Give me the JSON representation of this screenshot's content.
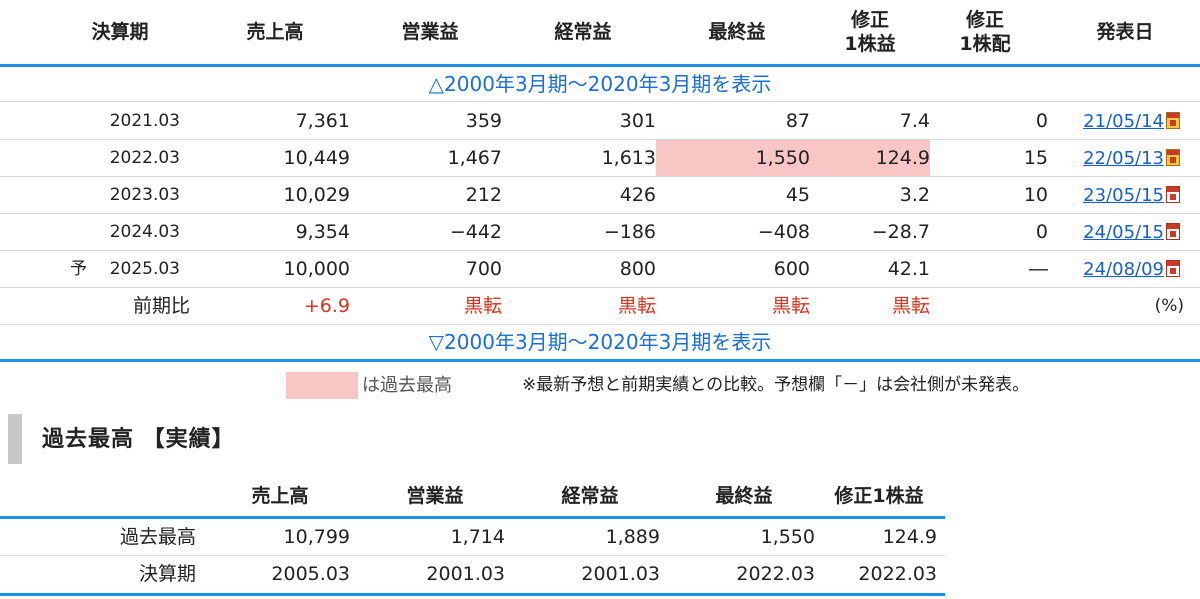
{
  "earnings_table": {
    "headers": {
      "period": "決算期",
      "sales": "売上高",
      "operating": "営業益",
      "ordinary": "経常益",
      "net": "最終益",
      "eps_l1": "修正",
      "eps_l2": "1株益",
      "div_l1": "修正",
      "div_l2": "1株配",
      "date": "発表日"
    },
    "toggle_top": "△2000年3月期～2020年3月期を表示",
    "toggle_bottom": "▽2000年3月期～2020年3月期を表示",
    "rows": [
      {
        "prefix": "",
        "period": "2021.03",
        "sales": "7,361",
        "operating": "359",
        "ordinary": "301",
        "net": "87",
        "eps": "7.4",
        "div": "0",
        "date": "21/05/14",
        "icon": "tdnet-yellow-doc-icon"
      },
      {
        "prefix": "",
        "period": "2022.03",
        "sales": "10,449",
        "operating": "1,467",
        "ordinary": "1,613",
        "net": "1,550",
        "eps": "124.9",
        "div": "15",
        "date": "22/05/13",
        "icon": "tdnet-yellow-doc-icon"
      },
      {
        "prefix": "",
        "period": "2023.03",
        "sales": "10,029",
        "operating": "212",
        "ordinary": "426",
        "net": "45",
        "eps": "3.2",
        "div": "10",
        "date": "23/05/15",
        "icon": "pdf-doc-icon"
      },
      {
        "prefix": "",
        "period": "2024.03",
        "sales": "9,354",
        "operating": "−442",
        "ordinary": "−186",
        "net": "−408",
        "eps": "−28.7",
        "div": "0",
        "date": "24/05/15",
        "icon": "pdf-doc-icon"
      },
      {
        "prefix": "予",
        "period": "2025.03",
        "sales": "10,000",
        "operating": "700",
        "ordinary": "800",
        "net": "600",
        "eps": "42.1",
        "div": "―",
        "date": "24/08/09",
        "icon": "pdf-doc-icon"
      }
    ],
    "comparison": {
      "label": "前期比",
      "sales": "+6.9",
      "operating": "黒転",
      "ordinary": "黒転",
      "net": "黒転",
      "eps": "黒転",
      "unit": "(%)"
    },
    "highlight_color": "#f9c6c6",
    "accent_color": "#1e90e6",
    "change_color": "#e0301e"
  },
  "legend": {
    "swatch_label": "は過去最高",
    "note": "※最新予想と前期実績との比較。予想欄「－」は会社側が未発表。"
  },
  "record_section": {
    "title": "過去最高 【実績】",
    "headers": {
      "sales": "売上高",
      "operating": "営業益",
      "ordinary": "経常益",
      "net": "最終益",
      "eps": "修正1株益"
    },
    "rows": [
      {
        "label": "過去最高",
        "sales": "10,799",
        "operating": "1,714",
        "ordinary": "1,889",
        "net": "1,550",
        "eps": "124.9"
      },
      {
        "label": "決算期",
        "sales": "2005.03",
        "operating": "2001.03",
        "ordinary": "2001.03",
        "net": "2022.03",
        "eps": "2022.03"
      }
    ]
  }
}
